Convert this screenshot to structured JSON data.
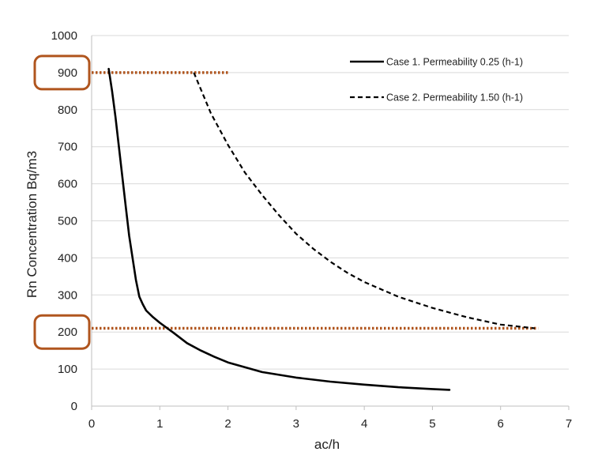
{
  "chart_data": {
    "type": "line",
    "xlabel": "ac/h",
    "ylabel": "Rn Concentration Bq/m3",
    "xlim": [
      0,
      7
    ],
    "ylim": [
      0,
      1000
    ],
    "x_ticks": [
      "0",
      "1",
      "2",
      "3",
      "4",
      "5",
      "6",
      "7"
    ],
    "y_ticks": [
      "0",
      "100",
      "200",
      "300",
      "400",
      "500",
      "600",
      "700",
      "800",
      "900",
      "1000"
    ],
    "grid": "horizontal",
    "legend_position": "top-right",
    "series": [
      {
        "name": "Case 1. Permeability 0.25 (h-1)",
        "style": "solid",
        "color": "#000000",
        "x": [
          0.25,
          0.3,
          0.35,
          0.4,
          0.45,
          0.5,
          0.55,
          0.6,
          0.65,
          0.7,
          0.75,
          0.8,
          0.9,
          1.0,
          1.2,
          1.4,
          1.6,
          1.8,
          2.0,
          2.5,
          3.0,
          3.5,
          4.0,
          4.5,
          5.0,
          5.25
        ],
        "y": [
          910,
          850,
          780,
          700,
          620,
          540,
          460,
          400,
          340,
          295,
          275,
          258,
          240,
          225,
          198,
          170,
          150,
          133,
          118,
          92,
          77,
          66,
          58,
          51,
          46,
          44
        ]
      },
      {
        "name": "Case 2. Permeability 1.50 (h-1)",
        "style": "dashed",
        "color": "#000000",
        "x": [
          1.5,
          1.75,
          2.0,
          2.25,
          2.5,
          2.75,
          3.0,
          3.25,
          3.5,
          3.75,
          4.0,
          4.5,
          5.0,
          5.5,
          6.0,
          6.5
        ],
        "y": [
          900,
          790,
          705,
          630,
          570,
          515,
          465,
          425,
          390,
          360,
          335,
          295,
          265,
          240,
          220,
          210
        ]
      }
    ],
    "reference_lines": [
      {
        "y": 900,
        "x_start": 0,
        "x_end": 2.0,
        "color": "#b0551e",
        "style": "dotted"
      },
      {
        "y": 210,
        "x_start": 0,
        "x_end": 6.55,
        "color": "#b0551e",
        "style": "dotted"
      }
    ],
    "highlighted_ticks": [
      "900",
      "200"
    ],
    "highlight_color": "#b0551e"
  }
}
